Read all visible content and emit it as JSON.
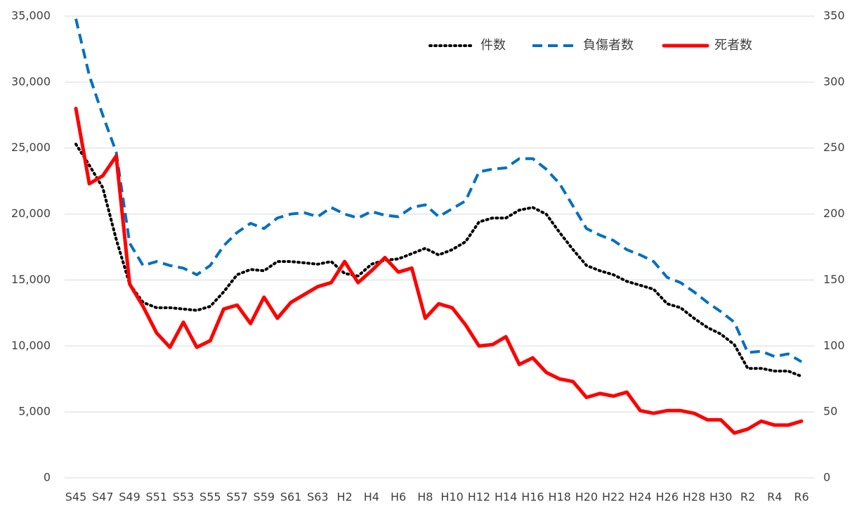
{
  "chart_data": {
    "type": "line",
    "categories": [
      "S45",
      null,
      "S47",
      null,
      "S49",
      null,
      "S51",
      null,
      "S53",
      null,
      "S55",
      null,
      "S57",
      null,
      "S59",
      null,
      "S61",
      null,
      "S63",
      null,
      "H2",
      null,
      "H4",
      null,
      "H6",
      null,
      "H8",
      null,
      "H10",
      null,
      "H12",
      null,
      "H14",
      null,
      "H16",
      null,
      "H18",
      null,
      "H20",
      null,
      "H22",
      null,
      "H24",
      null,
      "H26",
      null,
      "H28",
      null,
      "H30",
      null,
      "R2",
      null,
      "R4",
      null,
      "R6"
    ],
    "series": [
      {
        "name": "件数",
        "color": "#000000",
        "style": "dotted",
        "axis": "y",
        "values": [
          25300,
          23700,
          22000,
          18100,
          14700,
          13300,
          12900,
          12900,
          12800,
          12700,
          13000,
          14100,
          15400,
          15800,
          15700,
          16400,
          16400,
          16300,
          16200,
          16400,
          15500,
          15300,
          16200,
          16500,
          16600,
          17000,
          17400,
          16900,
          17300,
          17900,
          19400,
          19700,
          19700,
          20300,
          20500,
          20000,
          18600,
          17300,
          16100,
          15700,
          15400,
          14900,
          14600,
          14300,
          13200,
          12900,
          12100,
          11400,
          10900,
          10100,
          8300,
          8300,
          8100,
          8100,
          7700
        ]
      },
      {
        "name": "負傷者数",
        "color": "#0070c0",
        "style": "dashed",
        "axis": "y",
        "values": [
          34800,
          30500,
          27500,
          24700,
          17800,
          16100,
          16400,
          16100,
          15900,
          15400,
          16100,
          17600,
          18600,
          19300,
          18900,
          19700,
          20000,
          20100,
          19800,
          20500,
          20000,
          19700,
          20200,
          19900,
          19800,
          20500,
          20700,
          19800,
          20400,
          21000,
          23200,
          23400,
          23500,
          24200,
          24200,
          23400,
          22300,
          20600,
          18900,
          18400,
          18000,
          17300,
          16900,
          16400,
          15200,
          14800,
          14100,
          13300,
          12600,
          11800,
          9500,
          9600,
          9200,
          9400,
          8800
        ]
      },
      {
        "name": "死者数",
        "color": "#ff0000",
        "style": "solid",
        "axis": "y2",
        "values": [
          280,
          223,
          229,
          244,
          147,
          130,
          110,
          99,
          118,
          99,
          104,
          128,
          131,
          117,
          137,
          121,
          133,
          139,
          145,
          148,
          164,
          148,
          157,
          167,
          156,
          159,
          121,
          132,
          129,
          116,
          100,
          101,
          107,
          86,
          91,
          80,
          75,
          73,
          61,
          64,
          62,
          65,
          51,
          49,
          51,
          51,
          49,
          44,
          44,
          34,
          37,
          43,
          40,
          40,
          43
        ]
      }
    ],
    "ylim": [
      0,
      35000
    ],
    "yticks": [
      0,
      {
        "value": 5000,
        "label": "5,000"
      },
      {
        "value": 10000,
        "label": "10,000"
      },
      {
        "value": 15000,
        "label": "15,000"
      },
      {
        "value": 20000,
        "label": "20,000"
      },
      {
        "value": 25000,
        "label": "25,000"
      },
      {
        "value": 30000,
        "label": "30,000"
      },
      {
        "value": 35000,
        "label": "35,000"
      }
    ],
    "y2lim": [
      0,
      350
    ],
    "y2ticks": [
      0,
      50,
      100,
      150,
      200,
      250,
      300,
      350
    ],
    "grid": true,
    "legend": "top-right"
  }
}
